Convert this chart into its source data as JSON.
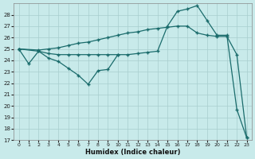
{
  "xlabel": "Humidex (Indice chaleur)",
  "bg_color": "#c8eaea",
  "grid_color": "#a8cece",
  "line_color": "#1a6b6b",
  "xlim": [
    -0.5,
    23.5
  ],
  "ylim": [
    17,
    29
  ],
  "yticks": [
    17,
    18,
    19,
    20,
    21,
    22,
    23,
    24,
    25,
    26,
    27,
    28
  ],
  "xticks": [
    0,
    1,
    2,
    3,
    4,
    5,
    6,
    7,
    8,
    9,
    10,
    11,
    12,
    13,
    14,
    15,
    16,
    17,
    18,
    19,
    20,
    21,
    22,
    23
  ],
  "line1_x": [
    0,
    2,
    3,
    4,
    5,
    6,
    7,
    8,
    9,
    10,
    11,
    12,
    13,
    14,
    15,
    16,
    17,
    18,
    19,
    20,
    21,
    22,
    23
  ],
  "line1_y": [
    25.0,
    24.9,
    25.0,
    25.1,
    25.3,
    25.5,
    25.6,
    25.8,
    26.0,
    26.2,
    26.4,
    26.5,
    26.7,
    26.8,
    26.9,
    27.0,
    27.0,
    26.4,
    26.2,
    26.1,
    26.1,
    24.5,
    17.2
  ],
  "line2_x": [
    0,
    2,
    3,
    4,
    5,
    6,
    7,
    8,
    9,
    10,
    11,
    12,
    13,
    14,
    15,
    16,
    17,
    18,
    19,
    20,
    21,
    22,
    23
  ],
  "line2_y": [
    25.0,
    24.8,
    24.6,
    24.5,
    24.5,
    24.5,
    24.5,
    24.5,
    24.5,
    24.5,
    24.5,
    24.6,
    24.7,
    24.8,
    27.0,
    28.3,
    28.5,
    28.8,
    27.5,
    26.2,
    26.2,
    19.7,
    17.2
  ],
  "line3_x": [
    0,
    1,
    2,
    3,
    4,
    5,
    6,
    7,
    8,
    9,
    10
  ],
  "line3_y": [
    25.0,
    23.7,
    24.8,
    24.2,
    23.9,
    23.3,
    22.7,
    21.9,
    23.1,
    23.2,
    24.5
  ]
}
